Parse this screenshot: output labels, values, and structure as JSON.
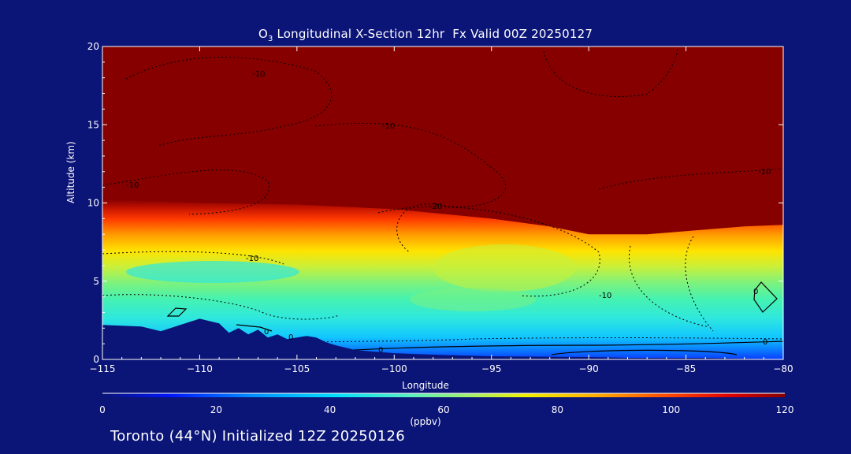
{
  "chart_data": {
    "type": "heatmap",
    "title_prefix": "O",
    "title_sub": "3",
    "title_rest": " Longitudinal X-Section 12hr  Fx Valid 00Z 20250127",
    "xlabel": "Longitude",
    "ylabel": "Altitude (km)",
    "xlim": [
      -115,
      -80
    ],
    "ylim": [
      0,
      20
    ],
    "x_ticks": [
      -115,
      -110,
      -105,
      -100,
      -95,
      -90,
      -85,
      -80
    ],
    "x_tick_labels": [
      "−115",
      "−110",
      "−105",
      "−100",
      "−95",
      "−90",
      "−85",
      "−80"
    ],
    "y_ticks": [
      0,
      5,
      10,
      15,
      20
    ],
    "y_tick_labels": [
      "0",
      "5",
      "10",
      "15",
      "20"
    ],
    "colorbar": {
      "label": "(ppbv)",
      "range": [
        0,
        120
      ],
      "ticks": [
        0,
        20,
        40,
        60,
        80,
        100,
        120
      ],
      "tick_labels": [
        "0",
        "20",
        "40",
        "60",
        "80",
        "100",
        "120"
      ]
    },
    "tropopause_height_km": {
      "lon": [
        -115,
        -110,
        -105,
        -100,
        -95,
        -92,
        -90,
        -87,
        -85,
        -82,
        -80
      ],
      "km": [
        10.2,
        10.0,
        9.9,
        9.6,
        9.0,
        8.5,
        8.0,
        8.0,
        8.2,
        8.5,
        8.6
      ]
    },
    "terrain_height_km": {
      "lon": [
        -115,
        -113,
        -112,
        -111,
        -110,
        -109,
        -108.5,
        -108,
        -107.5,
        -107,
        -106.5,
        -106,
        -105.5,
        -105,
        -104.5,
        -104,
        -103.5,
        -103,
        -102,
        -101,
        -100,
        -98,
        -95,
        -90,
        -88,
        -86,
        -84,
        -82,
        -80
      ],
      "km": [
        2.2,
        2.1,
        1.8,
        2.2,
        2.6,
        2.3,
        1.7,
        2.0,
        1.6,
        1.9,
        1.4,
        1.6,
        1.3,
        1.4,
        1.5,
        1.4,
        1.1,
        0.9,
        0.6,
        0.5,
        0.4,
        0.3,
        0.2,
        0.15,
        0.1,
        0.1,
        0.1,
        0.05,
        0.0
      ]
    },
    "contour_labels": [
      "-10",
      "-10",
      "-10",
      "-20",
      "-10",
      "-10",
      "-10",
      "0",
      "0",
      "0",
      "0",
      "0"
    ]
  },
  "footer": {
    "station_text": "Toronto (44°N) Initialized 12Z 20250126"
  }
}
